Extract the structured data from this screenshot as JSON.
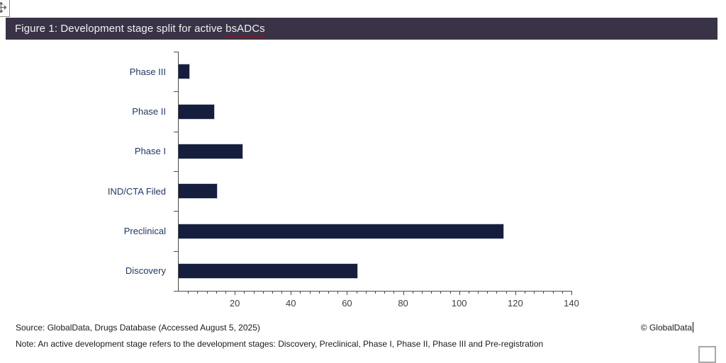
{
  "figure_header": {
    "title_prefix": "Figure 1: Development stage split for active ",
    "title_highlight": "bsADCs",
    "bg_color": "#3a3347",
    "text_color": "#f1f0f3"
  },
  "chart_data": {
    "type": "bar",
    "orientation": "horizontal",
    "categories": [
      "Phase III",
      "Phase II",
      "Phase I",
      "IND/CTA Filed",
      "Preclinical",
      "Discovery"
    ],
    "values": [
      4,
      13,
      23,
      14,
      116,
      64
    ],
    "title": "Development stage split for active bsADCs",
    "xlabel": "",
    "ylabel": "",
    "xlim": [
      0,
      140
    ],
    "x_tick_labels": [
      "20",
      "40",
      "60",
      "80",
      "100",
      "120",
      "140"
    ],
    "x_major_step": 20,
    "x_minor_per_major": 6,
    "grid": false,
    "legend": false,
    "bar_color": "#151f3d",
    "bar_border_color": "#c9cdd9",
    "category_label_color": "#1f3864",
    "tick_label_color": "#3f3f3f"
  },
  "footer": {
    "source": "Source: GlobalData, Drugs Database (Accessed August 5, 2025)",
    "copyright": "© GlobalData",
    "note": "Note: An active development stage refers to the development stages: Discovery, Preclinical, Phase I, Phase II, Phase III and Pre-registration"
  },
  "window": {
    "move_handle_icon": "move-arrows-icon",
    "corner_box": "empty-box"
  }
}
